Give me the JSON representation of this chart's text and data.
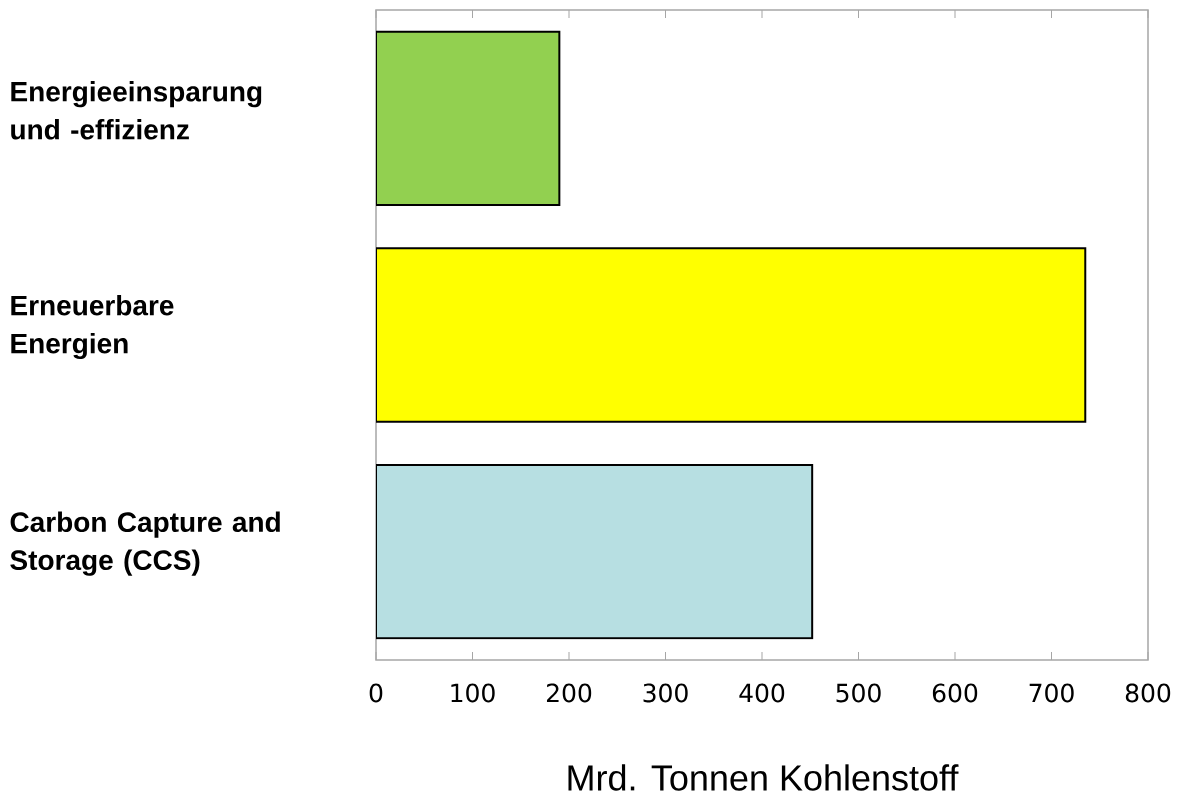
{
  "chart_data": {
    "type": "bar",
    "orientation": "horizontal",
    "xlabel": "Mrd. Tonnen Kohlenstoff",
    "categories": [
      "Energieeinsparung und -effizienz",
      "Erneuerbare Energien",
      "Carbon Capture and Storage (CCS)"
    ],
    "values": [
      190,
      735,
      452
    ],
    "colors": [
      "#92d050",
      "#ffff00",
      "#b7dfe2"
    ],
    "xlim": [
      0,
      800
    ],
    "xticks": [
      0,
      100,
      200,
      300,
      400,
      500,
      600,
      700,
      800
    ]
  }
}
